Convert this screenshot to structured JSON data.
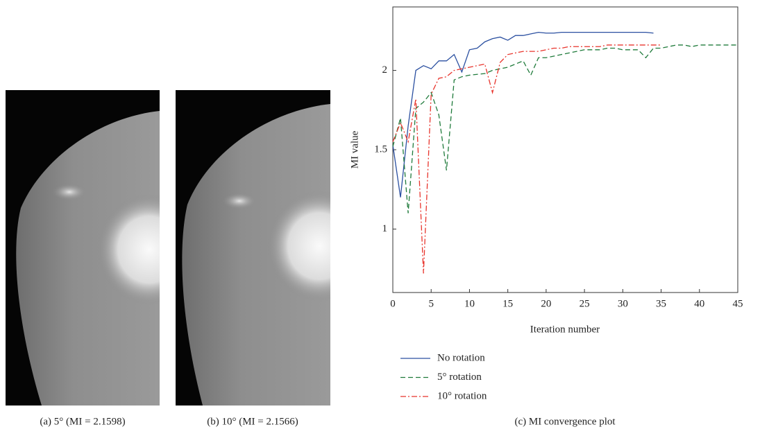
{
  "panels": [
    {
      "caption": "(a)  5° (MI = 2.1598)"
    },
    {
      "caption": "(b)  10° (MI = 2.1566)"
    }
  ],
  "chart_data": {
    "type": "line",
    "caption": "(c)  MI convergence plot",
    "xlabel": "Iteration number",
    "ylabel": "MI value",
    "x": [
      0,
      1,
      2,
      3,
      4,
      5,
      6,
      7,
      8,
      9,
      10,
      11,
      12,
      13,
      14,
      15,
      16,
      17,
      18,
      19,
      20,
      21,
      22,
      23,
      24,
      25,
      26,
      27,
      28,
      29,
      30,
      31,
      32,
      33,
      34,
      35,
      36,
      37,
      38,
      39,
      40,
      41,
      42,
      43,
      44,
      45
    ],
    "xlim": [
      0,
      45
    ],
    "xticks": [
      0,
      5,
      10,
      15,
      20,
      25,
      30,
      35,
      40,
      45
    ],
    "ylim": [
      0.6,
      2.4
    ],
    "yticks": [
      1,
      1.5,
      2
    ],
    "series": [
      {
        "name": "No rotation",
        "color": "#2a4fa0",
        "dash": "solid",
        "values": [
          1.53,
          1.2,
          1.65,
          2.0,
          2.03,
          2.01,
          2.06,
          2.06,
          2.1,
          1.99,
          2.13,
          2.14,
          2.18,
          2.2,
          2.21,
          2.19,
          2.22,
          2.22,
          2.23,
          2.24,
          2.235,
          2.235,
          2.24,
          2.24,
          2.24,
          2.24,
          2.24,
          2.24,
          2.24,
          2.24,
          2.24,
          2.24,
          2.24,
          2.24,
          2.235,
          null,
          null,
          null,
          null,
          null,
          null,
          null,
          null,
          null,
          null,
          null
        ]
      },
      {
        "name": "5° rotation",
        "color": "#1e7a3a",
        "dash": "dashed",
        "values": [
          1.52,
          1.7,
          1.1,
          1.76,
          1.8,
          1.86,
          1.72,
          1.37,
          1.94,
          1.96,
          1.97,
          1.975,
          1.98,
          2.0,
          2.01,
          2.02,
          2.04,
          2.06,
          1.97,
          2.08,
          2.08,
          2.09,
          2.1,
          2.11,
          2.12,
          2.13,
          2.13,
          2.13,
          2.14,
          2.14,
          2.13,
          2.13,
          2.13,
          2.08,
          2.14,
          2.14,
          2.15,
          2.16,
          2.16,
          2.15,
          2.16,
          2.16,
          2.16,
          2.16,
          2.16,
          2.16
        ]
      },
      {
        "name": "10° rotation",
        "color": "#e8332b",
        "dash": "dashdot",
        "values": [
          1.55,
          1.67,
          1.55,
          1.82,
          0.72,
          1.85,
          1.95,
          1.96,
          2.0,
          2.01,
          2.02,
          2.03,
          2.04,
          1.86,
          2.05,
          2.1,
          2.11,
          2.12,
          2.12,
          2.12,
          2.13,
          2.14,
          2.14,
          2.15,
          2.15,
          2.15,
          2.15,
          2.15,
          2.16,
          2.16,
          2.16,
          2.16,
          2.16,
          2.16,
          2.16,
          2.16,
          null,
          null,
          null,
          null,
          null,
          null,
          null,
          null,
          null,
          null
        ]
      }
    ]
  }
}
